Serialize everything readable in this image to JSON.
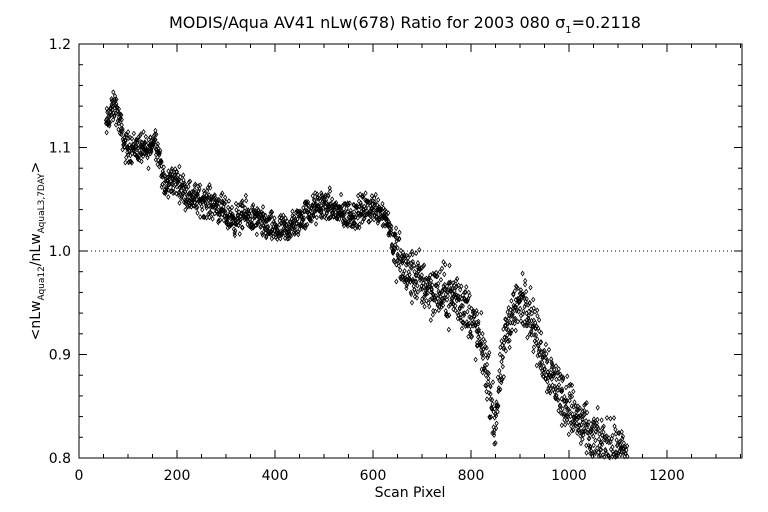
{
  "chart_data": {
    "type": "scatter",
    "title": "MODIS/Aqua AV41 nLw(678) Ratio for 2003 080 σ₁=0.2118",
    "title_parts": {
      "main": "MODIS/Aqua AV41 nLw(678) Ratio for 2003 080 σ",
      "sub": "1",
      "tail": "=0.2118"
    },
    "xlabel": "Scan Pixel",
    "ylabel": "<nLw_{Aqua12}/nLw_{AquaL3,7DAY}>",
    "ylabel_parts": [
      "<nLw",
      "Aqua12",
      "/nLw",
      "AquaL3,7DAY",
      ">"
    ],
    "xlim": [
      0,
      1350
    ],
    "ylim": [
      0.8,
      1.2
    ],
    "xticks": [
      "0",
      "200",
      "400",
      "600",
      "800",
      "1000",
      "1200"
    ],
    "yticks": [
      "0.8",
      "0.9",
      "1.0",
      "1.1",
      "1.2"
    ],
    "reference_line": 1.0,
    "marker": "diamond",
    "color": "#000000",
    "trend": [
      [
        55,
        1.12
      ],
      [
        65,
        1.135
      ],
      [
        75,
        1.14
      ],
      [
        85,
        1.12
      ],
      [
        95,
        1.1
      ],
      [
        110,
        1.1
      ],
      [
        125,
        1.1
      ],
      [
        140,
        1.095
      ],
      [
        155,
        1.11
      ],
      [
        165,
        1.09
      ],
      [
        175,
        1.06
      ],
      [
        190,
        1.07
      ],
      [
        205,
        1.065
      ],
      [
        220,
        1.055
      ],
      [
        240,
        1.05
      ],
      [
        260,
        1.048
      ],
      [
        280,
        1.045
      ],
      [
        300,
        1.035
      ],
      [
        320,
        1.03
      ],
      [
        340,
        1.035
      ],
      [
        360,
        1.03
      ],
      [
        380,
        1.025
      ],
      [
        400,
        1.02
      ],
      [
        420,
        1.02
      ],
      [
        440,
        1.025
      ],
      [
        460,
        1.035
      ],
      [
        480,
        1.04
      ],
      [
        500,
        1.045
      ],
      [
        520,
        1.04
      ],
      [
        540,
        1.035
      ],
      [
        560,
        1.035
      ],
      [
        580,
        1.04
      ],
      [
        600,
        1.042
      ],
      [
        615,
        1.04
      ],
      [
        630,
        1.03
      ],
      [
        645,
        1.0
      ],
      [
        660,
        0.985
      ],
      [
        675,
        0.975
      ],
      [
        690,
        0.975
      ],
      [
        710,
        0.965
      ],
      [
        730,
        0.96
      ],
      [
        750,
        0.958
      ],
      [
        770,
        0.955
      ],
      [
        790,
        0.945
      ],
      [
        805,
        0.93
      ],
      [
        820,
        0.91
      ],
      [
        835,
        0.88
      ],
      [
        848,
        0.83
      ],
      [
        858,
        0.87
      ],
      [
        875,
        0.93
      ],
      [
        890,
        0.945
      ],
      [
        900,
        0.95
      ],
      [
        915,
        0.95
      ],
      [
        925,
        0.935
      ],
      [
        935,
        0.915
      ],
      [
        945,
        0.9
      ],
      [
        960,
        0.885
      ],
      [
        980,
        0.865
      ],
      [
        1000,
        0.85
      ],
      [
        1020,
        0.835
      ],
      [
        1040,
        0.82
      ],
      [
        1060,
        0.815
      ],
      [
        1080,
        0.81
      ],
      [
        1100,
        0.805
      ],
      [
        1120,
        0.8
      ]
    ]
  }
}
